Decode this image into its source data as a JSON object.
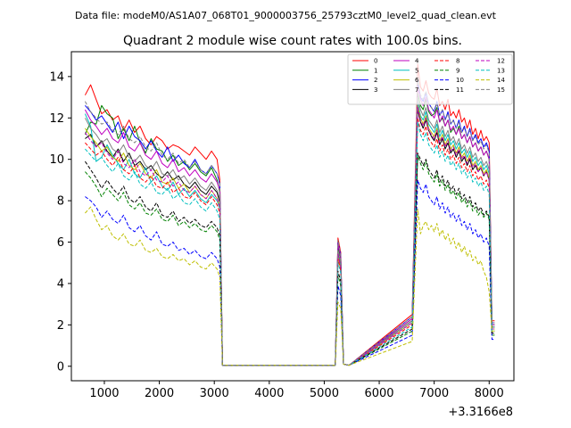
{
  "chart_data": {
    "type": "line",
    "suptitle": "Data file: modeM0/AS1A07_068T01_9000003756_25793cztM0_level2_quad_clean.evt",
    "title": "Quadrant 2 module wise count rates with 100.0s bins.",
    "xlabel": "",
    "ylabel": "",
    "x_offset_label": "+3.3166e8",
    "xlim": [
      400,
      8450
    ],
    "ylim": [
      -0.7,
      15.2
    ],
    "x_ticks": [
      1000,
      2000,
      3000,
      4000,
      5000,
      6000,
      7000,
      8000
    ],
    "x_tick_labels": [
      "1000",
      "2000",
      "3000",
      "4000",
      "5000",
      "6000",
      "7000",
      "8000"
    ],
    "y_ticks": [
      0,
      2,
      4,
      6,
      8,
      10,
      12,
      14
    ],
    "y_tick_labels": [
      "0",
      "2",
      "4",
      "6",
      "8",
      "10",
      "12",
      "14"
    ],
    "legend_position": "top-right",
    "x": [
      650,
      750,
      850,
      950,
      1050,
      1150,
      1250,
      1350,
      1450,
      1550,
      1650,
      1750,
      1850,
      1950,
      2050,
      2150,
      2250,
      2350,
      2450,
      2550,
      2650,
      2750,
      2850,
      2950,
      3050,
      3100,
      3150,
      5200,
      5250,
      5300,
      5350,
      5450,
      6600,
      6700,
      6750,
      6800,
      6850,
      6900,
      6950,
      7000,
      7050,
      7100,
      7150,
      7200,
      7250,
      7300,
      7350,
      7400,
      7450,
      7500,
      7550,
      7600,
      7650,
      7700,
      7750,
      7800,
      7850,
      7900,
      7950,
      8000,
      8050,
      8100
    ],
    "series": [
      {
        "name": "0",
        "color": "#ff0000",
        "style": "solid",
        "values": [
          13.1,
          13.6,
          12.9,
          12.2,
          12.4,
          11.9,
          12.1,
          11.4,
          11.9,
          11.3,
          11.6,
          11.0,
          10.7,
          11.1,
          10.9,
          10.5,
          10.7,
          10.6,
          10.4,
          10.2,
          10.6,
          10.3,
          10.0,
          10.4,
          10.0,
          9.0,
          0.05,
          0.05,
          6.2,
          5.5,
          0.1,
          0.05,
          2.5,
          14.6,
          13.5,
          13.3,
          13.8,
          13.2,
          13.0,
          12.9,
          13.4,
          12.6,
          12.8,
          12.4,
          12.9,
          12.1,
          12.3,
          12.0,
          12.4,
          11.8,
          12.0,
          11.5,
          11.9,
          11.2,
          11.5,
          11.0,
          11.4,
          10.9,
          11.1,
          10.8,
          2.2,
          2.2
        ]
      },
      {
        "name": "1",
        "color": "#008000",
        "style": "solid",
        "values": [
          11.2,
          11.8,
          11.7,
          12.6,
          12.2,
          12.0,
          11.0,
          11.5,
          10.9,
          11.6,
          10.8,
          10.3,
          11.0,
          10.5,
          10.4,
          9.9,
          10.2,
          9.7,
          9.9,
          9.5,
          9.8,
          9.4,
          9.2,
          9.6,
          9.0,
          8.4,
          0.05,
          0.05,
          5.8,
          5.2,
          0.1,
          0.05,
          2.3,
          13.2,
          12.6,
          12.4,
          12.9,
          12.3,
          12.1,
          12.2,
          12.5,
          11.8,
          12.0,
          11.6,
          11.9,
          11.3,
          11.5,
          11.2,
          11.6,
          11.0,
          11.2,
          10.8,
          11.1,
          10.6,
          10.8,
          10.4,
          10.6,
          10.2,
          10.4,
          10.0,
          2.0,
          2.0
        ]
      },
      {
        "name": "2",
        "color": "#0000ff",
        "style": "solid",
        "values": [
          12.6,
          12.3,
          11.9,
          12.1,
          11.7,
          11.3,
          11.8,
          11.0,
          11.6,
          11.1,
          10.9,
          10.5,
          10.9,
          10.4,
          10.1,
          10.6,
          9.9,
          10.2,
          9.8,
          9.6,
          10.0,
          9.5,
          9.3,
          9.7,
          9.3,
          8.8,
          0.05,
          0.05,
          6.0,
          5.4,
          0.1,
          0.05,
          2.4,
          13.8,
          13.0,
          12.8,
          13.2,
          12.7,
          12.5,
          12.3,
          12.8,
          12.1,
          12.4,
          11.9,
          12.3,
          11.7,
          11.9,
          11.5,
          11.9,
          11.3,
          11.6,
          11.1,
          11.5,
          10.9,
          11.2,
          10.8,
          11.0,
          10.6,
          10.8,
          10.4,
          2.1,
          2.1
        ]
      },
      {
        "name": "3",
        "color": "#000000",
        "style": "solid",
        "values": [
          11.0,
          11.2,
          10.6,
          10.9,
          10.4,
          10.1,
          10.5,
          9.9,
          10.3,
          9.7,
          9.9,
          9.5,
          9.7,
          9.3,
          9.1,
          9.4,
          9.0,
          9.2,
          8.8,
          8.6,
          8.9,
          8.5,
          8.3,
          8.7,
          8.4,
          7.9,
          0.05,
          0.05,
          5.5,
          4.9,
          0.1,
          0.05,
          2.2,
          12.4,
          11.8,
          11.5,
          11.9,
          11.4,
          11.1,
          10.9,
          11.3,
          10.7,
          11.0,
          10.5,
          10.8,
          10.3,
          10.5,
          10.1,
          10.4,
          9.9,
          10.1,
          9.7,
          10.0,
          9.5,
          9.7,
          9.4,
          9.6,
          9.2,
          9.4,
          9.0,
          1.9,
          1.9
        ]
      },
      {
        "name": "4",
        "color": "#bf00bf",
        "style": "solid",
        "values": [
          12.4,
          11.9,
          11.6,
          11.2,
          11.5,
          11.0,
          10.8,
          11.3,
          10.6,
          10.4,
          10.8,
          10.2,
          10.0,
          10.4,
          9.8,
          9.6,
          10.0,
          9.4,
          9.6,
          9.2,
          9.5,
          9.1,
          8.9,
          9.3,
          8.9,
          8.5,
          0.05,
          0.05,
          5.9,
          5.3,
          0.1,
          0.05,
          2.3,
          13.5,
          12.9,
          12.6,
          13.0,
          12.4,
          12.2,
          12.0,
          12.4,
          11.8,
          12.1,
          11.6,
          11.9,
          11.4,
          11.6,
          11.2,
          11.5,
          11.0,
          11.2,
          10.8,
          11.1,
          10.6,
          10.8,
          10.4,
          10.6,
          10.2,
          10.4,
          10.0,
          2.0,
          2.0
        ]
      },
      {
        "name": "5",
        "color": "#00bfbf",
        "style": "solid",
        "values": [
          12.2,
          11.6,
          9.9,
          10.1,
          10.7,
          10.2,
          9.8,
          9.5,
          10.0,
          9.3,
          9.1,
          9.6,
          8.9,
          9.2,
          8.7,
          8.5,
          8.9,
          8.3,
          8.6,
          8.2,
          8.5,
          8.1,
          7.9,
          8.3,
          8.0,
          7.6,
          0.05,
          0.05,
          5.4,
          4.8,
          0.1,
          0.05,
          2.1,
          12.8,
          12.1,
          11.9,
          12.3,
          11.7,
          11.5,
          11.3,
          11.7,
          11.1,
          11.4,
          10.9,
          11.2,
          10.7,
          10.9,
          10.5,
          10.8,
          10.3,
          10.5,
          10.1,
          10.4,
          9.9,
          10.1,
          9.7,
          9.9,
          9.5,
          9.7,
          9.3,
          1.9,
          1.9
        ]
      },
      {
        "name": "6",
        "color": "#bfbf00",
        "style": "solid",
        "values": [
          11.5,
          11.1,
          10.8,
          10.4,
          10.6,
          10.1,
          9.9,
          10.3,
          9.7,
          9.5,
          9.8,
          9.3,
          9.1,
          9.5,
          8.9,
          8.8,
          9.1,
          8.6,
          8.8,
          8.4,
          8.7,
          8.3,
          8.1,
          8.5,
          8.1,
          7.7,
          0.05,
          0.05,
          5.3,
          4.7,
          0.1,
          0.05,
          2.1,
          12.6,
          12.0,
          11.7,
          12.1,
          11.5,
          11.3,
          11.1,
          11.5,
          10.9,
          11.2,
          10.7,
          11.0,
          10.5,
          10.7,
          10.3,
          10.6,
          10.1,
          10.3,
          9.9,
          10.2,
          9.7,
          9.9,
          9.5,
          9.7,
          9.3,
          9.5,
          9.1,
          1.8,
          1.8
        ]
      },
      {
        "name": "7",
        "color": "#808080",
        "style": "solid",
        "values": [
          12.0,
          11.5,
          11.2,
          10.8,
          11.0,
          10.5,
          10.3,
          10.7,
          10.1,
          9.9,
          10.2,
          9.7,
          9.5,
          9.9,
          9.3,
          9.2,
          9.5,
          9.0,
          9.2,
          8.8,
          9.1,
          8.7,
          8.5,
          8.9,
          8.5,
          8.1,
          0.05,
          0.05,
          5.6,
          5.0,
          0.1,
          0.05,
          2.2,
          13.0,
          12.4,
          12.1,
          12.5,
          11.9,
          11.7,
          11.5,
          11.9,
          11.3,
          11.6,
          11.1,
          11.4,
          10.9,
          11.1,
          10.7,
          11.0,
          10.5,
          10.7,
          10.3,
          10.6,
          10.1,
          10.3,
          9.9,
          10.1,
          9.7,
          9.9,
          9.5,
          1.9,
          1.9
        ]
      },
      {
        "name": "8",
        "color": "#ff0000",
        "style": "dashed",
        "values": [
          10.8,
          10.5,
          10.2,
          10.4,
          10.0,
          9.7,
          10.1,
          9.5,
          9.3,
          9.7,
          9.1,
          8.9,
          9.2,
          8.7,
          8.6,
          8.9,
          8.4,
          8.6,
          8.2,
          8.1,
          8.4,
          8.0,
          7.8,
          8.2,
          7.8,
          7.4,
          0.05,
          0.05,
          5.2,
          4.6,
          0.1,
          0.05,
          2.0,
          12.0,
          11.4,
          11.2,
          11.6,
          11.0,
          10.8,
          10.6,
          11.0,
          10.4,
          10.7,
          10.2,
          10.5,
          10.0,
          10.2,
          9.8,
          10.1,
          9.6,
          9.8,
          9.4,
          9.7,
          9.2,
          9.4,
          9.0,
          9.2,
          8.8,
          9.0,
          8.6,
          1.8,
          1.8
        ]
      },
      {
        "name": "9",
        "color": "#008000",
        "style": "dashed",
        "values": [
          9.4,
          9.1,
          8.7,
          8.2,
          8.6,
          8.3,
          8.0,
          8.4,
          7.8,
          7.6,
          7.9,
          7.4,
          7.3,
          7.6,
          7.1,
          7.0,
          7.3,
          6.8,
          7.0,
          6.7,
          6.9,
          6.6,
          6.5,
          6.8,
          6.5,
          6.1,
          0.05,
          0.05,
          4.4,
          3.9,
          0.1,
          0.05,
          1.7,
          10.2,
          9.8,
          9.5,
          9.9,
          9.3,
          9.1,
          8.9,
          9.3,
          8.7,
          9.0,
          8.5,
          8.8,
          8.3,
          8.5,
          8.1,
          8.4,
          7.9,
          8.1,
          7.7,
          8.0,
          7.5,
          7.7,
          7.3,
          7.5,
          7.2,
          7.4,
          7.1,
          1.5,
          1.5
        ]
      },
      {
        "name": "10",
        "color": "#0000ff",
        "style": "dashed",
        "values": [
          8.2,
          8.0,
          7.7,
          7.2,
          7.5,
          7.1,
          6.9,
          7.3,
          6.7,
          6.5,
          6.8,
          6.3,
          6.1,
          6.5,
          5.9,
          5.8,
          6.0,
          5.6,
          5.7,
          5.4,
          5.6,
          5.3,
          5.2,
          5.5,
          5.2,
          4.8,
          0.05,
          0.05,
          3.9,
          3.4,
          0.1,
          0.05,
          1.5,
          9.0,
          8.6,
          8.4,
          8.8,
          8.2,
          8.0,
          7.8,
          8.2,
          7.6,
          7.9,
          7.4,
          7.7,
          7.2,
          7.4,
          7.0,
          7.3,
          6.8,
          7.0,
          6.6,
          6.9,
          6.4,
          6.6,
          6.2,
          6.4,
          6.0,
          6.2,
          5.8,
          1.3,
          1.3
        ]
      },
      {
        "name": "11",
        "color": "#000000",
        "style": "dashed",
        "values": [
          9.9,
          9.5,
          9.1,
          8.6,
          9.0,
          8.6,
          8.3,
          8.7,
          8.1,
          7.9,
          8.2,
          7.7,
          7.5,
          7.9,
          7.3,
          7.2,
          7.5,
          7.0,
          7.2,
          6.9,
          7.1,
          6.8,
          6.7,
          7.0,
          6.7,
          6.3,
          0.05,
          0.05,
          4.6,
          4.1,
          0.1,
          0.05,
          1.8,
          10.3,
          10.0,
          9.7,
          10.0,
          9.5,
          9.3,
          9.1,
          9.5,
          8.9,
          9.2,
          8.7,
          9.0,
          8.5,
          8.7,
          8.3,
          8.6,
          8.1,
          8.3,
          7.9,
          8.2,
          7.7,
          7.9,
          7.5,
          7.7,
          7.3,
          7.5,
          7.2,
          1.6,
          1.6
        ]
      },
      {
        "name": "12",
        "color": "#bf00bf",
        "style": "dashed",
        "values": [
          11.3,
          10.9,
          10.6,
          10.8,
          10.3,
          10.0,
          10.4,
          9.8,
          9.6,
          10.0,
          9.4,
          9.2,
          9.5,
          9.0,
          8.9,
          9.2,
          8.7,
          8.9,
          8.5,
          8.4,
          8.7,
          8.3,
          8.1,
          8.5,
          8.1,
          7.7,
          0.05,
          0.05,
          5.4,
          4.8,
          0.1,
          0.05,
          2.1,
          12.5,
          11.9,
          11.6,
          12.0,
          11.4,
          11.2,
          11.0,
          11.4,
          10.8,
          11.1,
          10.6,
          10.9,
          10.4,
          10.6,
          10.2,
          10.5,
          10.0,
          10.2,
          9.8,
          10.1,
          9.6,
          9.8,
          9.4,
          9.6,
          9.2,
          9.4,
          9.0,
          1.8,
          1.8
        ]
      },
      {
        "name": "13",
        "color": "#00bfbf",
        "style": "dashed",
        "values": [
          10.5,
          10.2,
          9.9,
          10.1,
          9.7,
          9.4,
          9.8,
          9.2,
          9.0,
          9.4,
          8.8,
          8.6,
          8.9,
          8.4,
          8.3,
          8.6,
          8.1,
          8.3,
          7.9,
          7.8,
          8.1,
          7.7,
          7.5,
          7.9,
          7.5,
          7.1,
          0.05,
          0.05,
          5.0,
          4.5,
          0.1,
          0.05,
          1.9,
          11.8,
          11.2,
          10.9,
          11.3,
          10.7,
          10.5,
          10.3,
          10.7,
          10.1,
          10.4,
          9.9,
          10.2,
          9.7,
          9.9,
          9.5,
          9.8,
          9.3,
          9.5,
          9.1,
          9.4,
          8.9,
          9.1,
          8.7,
          8.9,
          8.5,
          8.7,
          8.3,
          1.7,
          1.7
        ]
      },
      {
        "name": "14",
        "color": "#bfbf00",
        "style": "dashed",
        "values": [
          7.4,
          7.7,
          7.1,
          6.6,
          6.8,
          6.3,
          6.1,
          6.4,
          5.9,
          5.8,
          6.1,
          5.6,
          5.5,
          5.7,
          5.3,
          5.2,
          5.4,
          5.1,
          5.2,
          4.9,
          5.1,
          4.8,
          4.7,
          5.0,
          4.7,
          4.3,
          0.05,
          0.05,
          3.1,
          2.8,
          0.1,
          0.05,
          1.2,
          7.6,
          6.4,
          6.8,
          7.0,
          6.6,
          6.8,
          6.5,
          6.9,
          6.3,
          6.6,
          6.1,
          6.4,
          5.9,
          6.2,
          5.7,
          6.0,
          5.5,
          5.8,
          5.3,
          5.6,
          5.1,
          5.3,
          4.9,
          5.1,
          4.6,
          4.3,
          3.6,
          1.7,
          1.7
        ]
      },
      {
        "name": "15",
        "color": "#808080",
        "style": "dashed",
        "values": [
          12.8,
          12.3,
          12.0,
          11.7,
          11.8,
          11.4,
          11.2,
          11.6,
          11.0,
          10.8,
          11.1,
          10.6,
          10.4,
          10.8,
          10.2,
          10.0,
          10.3,
          9.8,
          10.0,
          9.6,
          9.9,
          9.5,
          9.3,
          9.7,
          9.3,
          8.9,
          0.05,
          0.05,
          6.1,
          5.4,
          0.1,
          0.05,
          2.4,
          13.9,
          13.1,
          12.9,
          13.3,
          12.7,
          12.5,
          12.3,
          12.7,
          12.1,
          12.4,
          11.9,
          12.2,
          11.7,
          11.9,
          11.5,
          11.8,
          11.3,
          11.5,
          11.1,
          11.4,
          10.9,
          11.1,
          10.7,
          10.9,
          10.5,
          10.7,
          10.3,
          2.1,
          2.1
        ]
      }
    ]
  }
}
